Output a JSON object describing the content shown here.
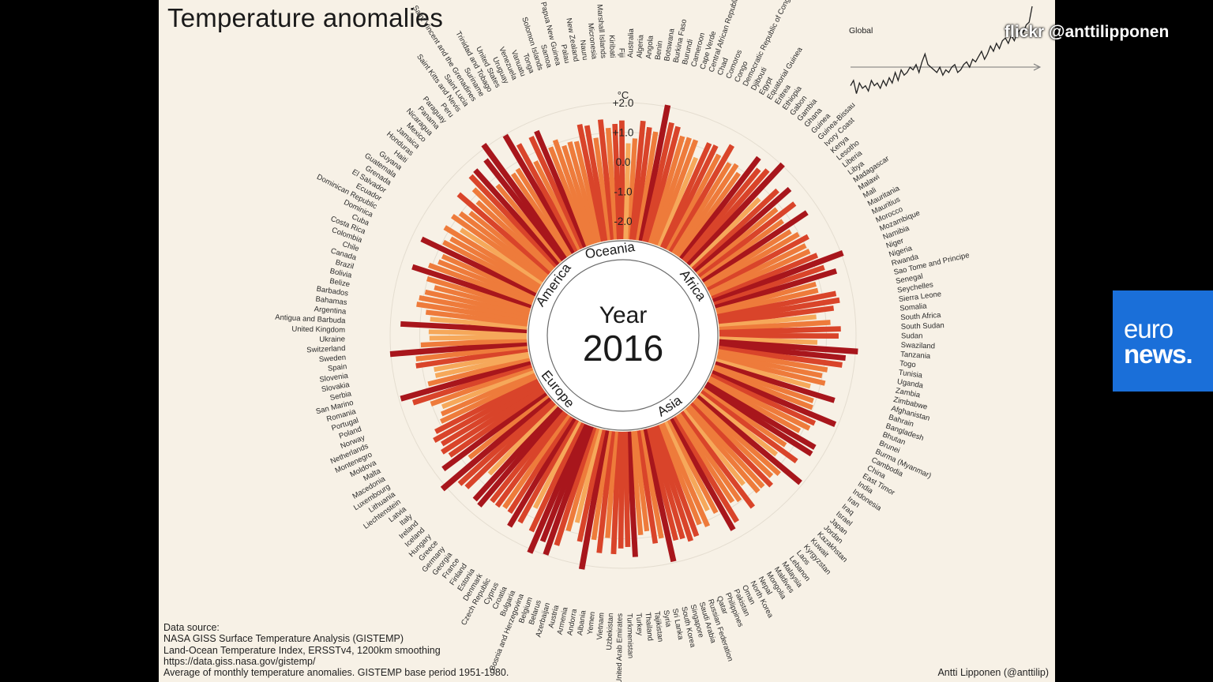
{
  "chart_data": {
    "type": "radial-bar",
    "title": "Temperature anomalies",
    "year_label": "Year",
    "year": "2016",
    "unit_label": "°C",
    "scale_ticks": [
      "+2.0",
      "+1.0",
      "0.0",
      "-1.0",
      "-2.0"
    ],
    "ylim": [
      -2.0,
      2.0
    ],
    "regions": [
      {
        "name": "Oceania",
        "countries": [
          "Vanuatu",
          "Tonga",
          "Solomon Islands",
          "Samoa",
          "Papua New Guinea",
          "Palau",
          "New Zealand",
          "Nauru",
          "Micronesia",
          "Marshall Islands",
          "Kiribati",
          "Fiji",
          "Australia"
        ]
      },
      {
        "name": "Africa",
        "countries": [
          "Algeria",
          "Angola",
          "Benin",
          "Botswana",
          "Burkina Faso",
          "Burundi",
          "Cameroon",
          "Cape Verde",
          "Central African Republic",
          "Chad",
          "Comoros",
          "Congo",
          "Democratic Republic of Congo",
          "Djibouti",
          "Egypt",
          "Equatorial Guinea",
          "Eritrea",
          "Ethiopia",
          "Gabon",
          "Gambia",
          "Ghana",
          "Guinea",
          "Guinea-Bissau",
          "Ivory Coast",
          "Kenya",
          "Lesotho",
          "Liberia",
          "Libya",
          "Madagascar",
          "Malawi",
          "Mali",
          "Mauritania",
          "Mauritius",
          "Morocco",
          "Mozambique",
          "Namibia",
          "Niger",
          "Nigeria",
          "Rwanda",
          "Sao Tome and Principe",
          "Senegal",
          "Seychelles",
          "Sierra Leone",
          "Somalia",
          "South Africa",
          "South Sudan",
          "Sudan",
          "Swaziland",
          "Tanzania",
          "Togo",
          "Tunisia",
          "Uganda",
          "Zambia",
          "Zimbabwe"
        ]
      },
      {
        "name": "Asia",
        "countries": [
          "Afghanistan",
          "Bahrain",
          "Bangladesh",
          "Bhutan",
          "Brunei",
          "Burma (Myanmar)",
          "Cambodia",
          "China",
          "East Timor",
          "India",
          "Indonesia",
          "Iran",
          "Iraq",
          "Israel",
          "Japan",
          "Jordan",
          "Kazakhstan",
          "Kuwait",
          "Kyrgyzstan",
          "Laos",
          "Lebanon",
          "Malaysia",
          "Maldives",
          "Mongolia",
          "Nepal",
          "North Korea",
          "Oman",
          "Pakistan",
          "Philippines",
          "Qatar",
          "Russian Federation",
          "Saudi Arabia",
          "Singapore",
          "South Korea",
          "Sri Lanka",
          "Syria",
          "Tajikistan",
          "Thailand",
          "Turkey",
          "Turkmenistan",
          "United Arab Emirates",
          "Uzbekistan",
          "Vietnam",
          "Yemen"
        ]
      },
      {
        "name": "Europe",
        "countries": [
          "Albania",
          "Andorra",
          "Armenia",
          "Austria",
          "Azerbaijan",
          "Belarus",
          "Belgium",
          "Bosnia and Herzegovina",
          "Bulgaria",
          "Croatia",
          "Cyprus",
          "Czech Republic",
          "Denmark",
          "Estonia",
          "Finland",
          "France",
          "Georgia",
          "Germany",
          "Greece",
          "Hungary",
          "Iceland",
          "Ireland",
          "Italy",
          "Latvia",
          "Liechtenstein",
          "Lithuania",
          "Luxembourg",
          "Macedonia",
          "Malta",
          "Moldova",
          "Montenegro",
          "Netherlands",
          "Norway",
          "Poland",
          "Portugal",
          "Romania",
          "San Marino",
          "Serbia",
          "Slovakia",
          "Slovenia",
          "Spain",
          "Sweden",
          "Switzerland",
          "Ukraine",
          "United Kingdom"
        ]
      },
      {
        "name": "America",
        "countries": [
          "Antigua and Barbuda",
          "Argentina",
          "Bahamas",
          "Barbados",
          "Belize",
          "Bolivia",
          "Brazil",
          "Canada",
          "Chile",
          "Colombia",
          "Costa Rica",
          "Cuba",
          "Dominica",
          "Dominican Republic",
          "Ecuador",
          "El Salvador",
          "Grenada",
          "Guatemala",
          "Guyana",
          "Haiti",
          "Honduras",
          "Jamaica",
          "Mexico",
          "Nicaragua",
          "Panama",
          "Paraguay",
          "Peru",
          "Saint Kitts and Nevis",
          "Saint Lucia",
          "Saint Vincent and the Grenadines",
          "Suriname",
          "Trinidad and Tobago",
          "United States",
          "Uruguay",
          "Venezuela"
        ]
      }
    ],
    "spark": {
      "label": "Global",
      "values": [
        -0.3,
        -0.2,
        -0.45,
        -0.25,
        -0.35,
        -0.3,
        -0.4,
        -0.2,
        -0.3,
        -0.25,
        -0.35,
        -0.2,
        -0.3,
        -0.15,
        -0.25,
        -0.05,
        -0.2,
        0.0,
        -0.1,
        -0.05,
        0.05,
        0.0,
        0.1,
        -0.05,
        0.15,
        0.3,
        0.1,
        0.05,
        0.0,
        -0.05,
        0.05,
        -0.1,
        0.0,
        -0.05,
        0.05,
        0.1,
        -0.05,
        0.0,
        0.1,
        0.15,
        0.05,
        0.2,
        0.15,
        0.25,
        0.35,
        0.2,
        0.3,
        0.45,
        0.35,
        0.5,
        0.4,
        0.55,
        0.6,
        0.5,
        0.65,
        0.55,
        0.7,
        0.75,
        0.7,
        0.85,
        0.9,
        1.2
      ]
    }
  },
  "source": {
    "lines": [
      "Data source:",
      "NASA GISS Surface Temperature Analysis (GISTEMP)",
      "Land-Ocean Temperature Index, ERSSTv4, 1200km smoothing",
      "https://data.giss.nasa.gov/gistemp/",
      "Average of monthly temperature anomalies. GISTEMP base period 1951-1980."
    ]
  },
  "credit": "Antti Lipponen (@anttilip)",
  "overlay": {
    "flickr_credit": "flickr @anttilipponen",
    "broadcaster_line1": "euro",
    "broadcaster_line2": "news."
  },
  "colors": {
    "background": "#f7f1e6",
    "hot_dark": "#a8161c",
    "hot_mid": "#d9442a",
    "warm": "#ee7b3b",
    "light": "#f6a85a",
    "brand_blue": "#1a6fd9"
  }
}
